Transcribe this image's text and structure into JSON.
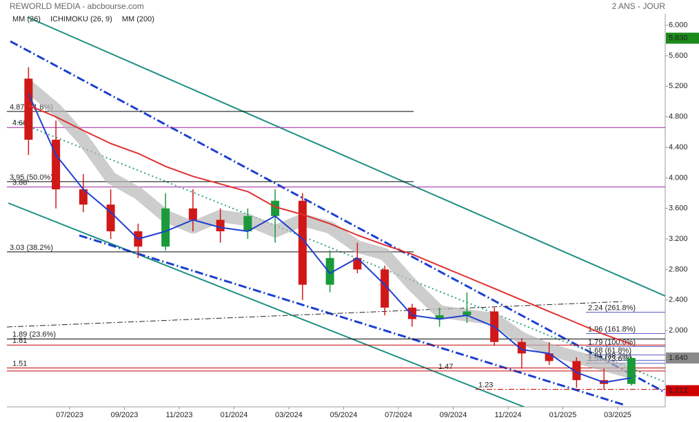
{
  "chart_data": {
    "type": "candlestick",
    "title": "REWORLD MEDIA - abcbourse.com",
    "subtitle": "2 ANS - JOUR",
    "categories": [
      null,
      null,
      "07/2023",
      null,
      "09/2023",
      null,
      "11/2023",
      null,
      "01/2024",
      null,
      "03/2024",
      null,
      "05/2024",
      null,
      "07/2024",
      null,
      "09/2024",
      null,
      "11/2024",
      null,
      "01/2025",
      null,
      "03/2025"
    ],
    "ohlc": {
      "open": [
        5.3,
        4.5,
        3.85,
        3.65,
        3.3,
        3.1,
        3.6,
        3.45,
        3.3,
        3.5,
        3.7,
        2.6,
        2.95,
        2.8,
        2.3,
        2.15,
        2.2,
        2.25,
        1.85,
        1.7,
        1.6,
        1.35,
        1.3
      ],
      "high": [
        5.45,
        4.75,
        4.05,
        3.85,
        3.4,
        3.8,
        3.85,
        3.6,
        3.6,
        3.85,
        3.8,
        3.05,
        3.15,
        2.85,
        2.35,
        2.3,
        2.5,
        2.3,
        1.9,
        1.85,
        1.65,
        1.5,
        1.66
      ],
      "low": [
        4.3,
        3.6,
        3.55,
        3.2,
        2.95,
        3.05,
        3.3,
        3.15,
        3.2,
        3.15,
        2.4,
        2.5,
        2.75,
        2.2,
        2.05,
        2.05,
        2.1,
        1.8,
        1.5,
        1.55,
        1.25,
        1.22,
        1.28
      ],
      "close": [
        4.5,
        3.85,
        3.65,
        3.3,
        3.1,
        3.6,
        3.45,
        3.3,
        3.5,
        3.7,
        2.6,
        2.95,
        2.8,
        2.3,
        2.15,
        2.2,
        2.25,
        1.85,
        1.7,
        1.6,
        1.35,
        1.3,
        1.64
      ]
    },
    "up_color": "#1a9a3a",
    "down_color": "#d01818",
    "series": [
      {
        "name": "MM (26)",
        "color": "#1f3fcf",
        "style": "line",
        "values": [
          5.1,
          4.3,
          3.85,
          3.55,
          3.2,
          3.3,
          3.45,
          3.35,
          3.3,
          3.5,
          3.2,
          2.75,
          2.95,
          2.6,
          2.2,
          2.15,
          2.2,
          2.05,
          1.75,
          1.7,
          1.45,
          1.32,
          1.38
        ]
      },
      {
        "name": "ICHIMOKU (26, 9)",
        "color": "#2a6ad0",
        "style": "cloud",
        "values": [
          5.2,
          4.9,
          4.5,
          4.0,
          3.8,
          3.5,
          3.35,
          3.5,
          3.45,
          3.3,
          3.45,
          3.35,
          3.1,
          3.0,
          2.6,
          2.25,
          2.2,
          2.15,
          1.9,
          1.75,
          1.65,
          1.55,
          1.45
        ]
      },
      {
        "name": "MM (200)",
        "color": "#e03030",
        "style": "line",
        "values": [
          4.95,
          4.8,
          4.62,
          4.45,
          4.32,
          4.15,
          4.02,
          3.92,
          3.82,
          3.62,
          3.52,
          3.4,
          3.25,
          3.12,
          3.0,
          2.85,
          2.7,
          2.55,
          2.4,
          2.25,
          2.1,
          1.95,
          1.82
        ]
      }
    ],
    "ylim": [
      1.0,
      6.15
    ],
    "yticks": [
      {
        "value": 6.0,
        "label": "6.000"
      },
      {
        "value": 5.6,
        "label": "5.600"
      },
      {
        "value": 5.2,
        "label": "5.200"
      },
      {
        "value": 4.8,
        "label": "4.800"
      },
      {
        "value": 4.4,
        "label": "4.400"
      },
      {
        "value": 4.0,
        "label": "4.000"
      },
      {
        "value": 3.6,
        "label": "3.600"
      },
      {
        "value": 3.2,
        "label": "3.200"
      },
      {
        "value": 2.8,
        "label": "2.800"
      },
      {
        "value": 2.4,
        "label": "2.400"
      },
      {
        "value": 2.0,
        "label": "2.000"
      }
    ],
    "levels": [
      {
        "value": 4.87,
        "label": "4.87  (61.8%)",
        "color": "#000000",
        "span": "left"
      },
      {
        "value": 4.66,
        "label": "4.66",
        "color": "#a020a0",
        "span": "full"
      },
      {
        "value": 3.95,
        "label": "3.95  (50.0%)",
        "color": "#000000",
        "span": "left"
      },
      {
        "value": 3.88,
        "label": "3.88",
        "color": "#a020a0",
        "span": "full"
      },
      {
        "value": 3.03,
        "label": "3.03  (38.2%)",
        "color": "#000000",
        "span": "left"
      },
      {
        "value": 1.89,
        "label": "1.89  (23.6%)",
        "color": "#000000",
        "span": "full"
      },
      {
        "value": 1.81,
        "label": "1.81",
        "color": "#c00000",
        "span": "full"
      },
      {
        "value": 1.51,
        "label": "1.51",
        "color": "#c00000",
        "span": "full"
      },
      {
        "value": 1.47,
        "label": "1.47",
        "color": "#c00000",
        "span": "middle"
      },
      {
        "value": 1.23,
        "label": "1.23",
        "color": "#c00000",
        "span": "right"
      },
      {
        "value": 2.24,
        "label": "2.24  (261.8%)",
        "color": "#5a5ac8",
        "span": "right"
      },
      {
        "value": 1.96,
        "label": "1.96  (161.8%)",
        "color": "#5a5ac8",
        "span": "right"
      },
      {
        "value": 1.79,
        "label": "1.79  (100.0%)",
        "color": "#5a5ac8",
        "span": "right"
      },
      {
        "value": 1.68,
        "label": "1.68  (61.8%)",
        "color": "#5a5ac8",
        "span": "right"
      },
      {
        "value": 1.61,
        "label": "1.61  (38.2%)",
        "color": "#5a5ac8",
        "span": "right"
      },
      {
        "value": 1.57,
        "label": "1.57  (23.6%)",
        "color": "#5a5ac8",
        "span": "right"
      }
    ],
    "price_tags": [
      {
        "value": 5.83,
        "label": "5.830",
        "color": "#1a8a1a"
      },
      {
        "value": 1.64,
        "label": "1.640",
        "color": "#8a8a8a"
      },
      {
        "value": 1.212,
        "label": "1.212",
        "color": "#d00000"
      }
    ]
  }
}
